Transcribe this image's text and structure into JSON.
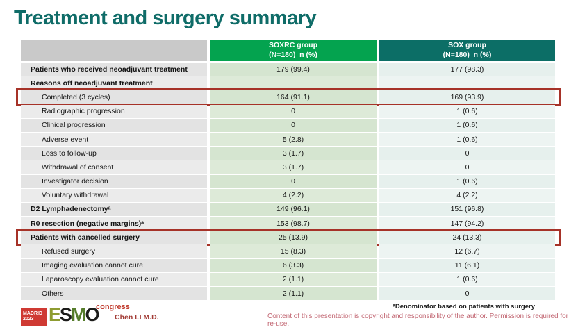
{
  "title": "Treatment and surgery summary",
  "table": {
    "header": {
      "soxrc": {
        "line1": "SOXRC group",
        "line2": "(N=180)  n (%)"
      },
      "sox": {
        "line1": "SOX group",
        "line2": "(N=180)  n (%)"
      }
    },
    "rows": [
      {
        "label": "Patients who received neoadjuvant treatment",
        "bold": true,
        "indent": false,
        "highlight": false,
        "soxrc": "179 (99.4)",
        "sox": "177 (98.3)"
      },
      {
        "label": "Reasons off neoadjuvant treatment",
        "bold": true,
        "indent": false,
        "highlight": false,
        "soxrc": "",
        "sox": ""
      },
      {
        "label": "Completed (3 cycles)",
        "bold": false,
        "indent": true,
        "highlight": true,
        "soxrc": "164 (91.1)",
        "sox": "169 (93.9)"
      },
      {
        "label": "Radiographic progression",
        "bold": false,
        "indent": true,
        "highlight": false,
        "soxrc": "0",
        "sox": "1 (0.6)"
      },
      {
        "label": "Clinical progression",
        "bold": false,
        "indent": true,
        "highlight": false,
        "soxrc": "0",
        "sox": "1 (0.6)"
      },
      {
        "label": "Adverse event",
        "bold": false,
        "indent": true,
        "highlight": false,
        "soxrc": "5 (2.8)",
        "sox": "1 (0.6)"
      },
      {
        "label": "Loss to follow-up",
        "bold": false,
        "indent": true,
        "highlight": false,
        "soxrc": "3 (1.7)",
        "sox": "0"
      },
      {
        "label": "Withdrawal of consent",
        "bold": false,
        "indent": true,
        "highlight": false,
        "soxrc": "3 (1.7)",
        "sox": "0"
      },
      {
        "label": "Investigator decision",
        "bold": false,
        "indent": true,
        "highlight": false,
        "soxrc": "0",
        "sox": "1 (0.6)"
      },
      {
        "label": "Voluntary withdrawal",
        "bold": false,
        "indent": true,
        "highlight": false,
        "soxrc": "4 (2.2)",
        "sox": "4 (2.2)"
      },
      {
        "label": "D2 Lymphadenectomyᵃ",
        "bold": true,
        "indent": false,
        "highlight": false,
        "soxrc": "149 (96.1)",
        "sox": "151 (96.8)"
      },
      {
        "label": "R0 resection (negative margins)ᵃ",
        "bold": true,
        "indent": false,
        "highlight": false,
        "soxrc": "153 (98.7)",
        "sox": "147 (94.2)"
      },
      {
        "label": "Patients with cancelled surgery",
        "bold": true,
        "indent": false,
        "highlight": true,
        "soxrc": "25 (13.9)",
        "sox": "24 (13.3)"
      },
      {
        "label": "Refused surgery",
        "bold": false,
        "indent": true,
        "highlight": false,
        "soxrc": "15 (8.3)",
        "sox": "12 (6.7)"
      },
      {
        "label": "Imaging evaluation cannot cure",
        "bold": false,
        "indent": true,
        "highlight": false,
        "soxrc": "6 (3.3)",
        "sox": "11 (6.1)"
      },
      {
        "label": "Laparoscopy evaluation cannot cure",
        "bold": false,
        "indent": true,
        "highlight": false,
        "soxrc": "2 (1.1)",
        "sox": "1 (0.6)"
      },
      {
        "label": "Others",
        "bold": false,
        "indent": true,
        "highlight": false,
        "soxrc": "2 (1.1)",
        "sox": "0"
      }
    ]
  },
  "footer": {
    "footnote": "ᵃDenominator based on patients with surgery",
    "copyright": "Content of this presentation is copyright and responsibility of the author.  Permission is required for re-use.",
    "author": "Chen LI M.D.",
    "logo": {
      "badge_line1": "MADRID",
      "badge_line2": "2023",
      "letters": [
        "E",
        "S",
        "M",
        "O"
      ],
      "congress": "congress"
    }
  },
  "colors": {
    "title_teal": "#0f6c68",
    "header_green": "#04a34f",
    "header_teal": "#0c6e66",
    "highlight_box_red": "#a63228",
    "label_column_gray": "#e3e3e3",
    "soxrc_column_green": "#d5e5d0",
    "sox_column_mist": "#e6f0ed",
    "author_red": "#a23b35",
    "copyright_rose": "#c26773",
    "logo_badge_red": "#cf3a33"
  }
}
